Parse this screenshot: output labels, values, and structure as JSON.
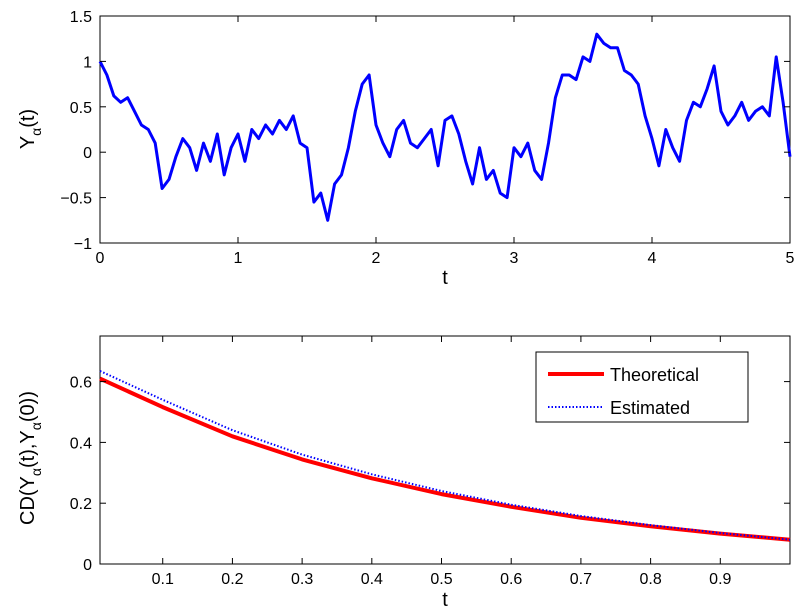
{
  "chart_data": [
    {
      "type": "line",
      "title": "",
      "xlabel": "t",
      "ylabel": "Y_α(t)",
      "ylabel_parts": [
        "Y",
        "α",
        "(t)"
      ],
      "xlim": [
        0,
        5
      ],
      "ylim": [
        -1,
        1.5
      ],
      "xticks": [
        "0",
        "1",
        "2",
        "3",
        "4",
        "5"
      ],
      "yticks": [
        "−1",
        "−0.5",
        "0",
        "0.5",
        "1",
        "1.5"
      ],
      "grid": false,
      "series": [
        {
          "color": "#0000ff",
          "x": [
            0.0,
            0.05,
            0.1,
            0.15,
            0.2,
            0.25,
            0.3,
            0.35,
            0.4,
            0.45,
            0.5,
            0.55,
            0.6,
            0.65,
            0.7,
            0.75,
            0.8,
            0.85,
            0.9,
            0.95,
            1.0,
            1.05,
            1.1,
            1.15,
            1.2,
            1.25,
            1.3,
            1.35,
            1.4,
            1.45,
            1.5,
            1.55,
            1.6,
            1.65,
            1.7,
            1.75,
            1.8,
            1.85,
            1.9,
            1.95,
            2.0,
            2.05,
            2.1,
            2.15,
            2.2,
            2.25,
            2.3,
            2.35,
            2.4,
            2.45,
            2.5,
            2.55,
            2.6,
            2.65,
            2.7,
            2.75,
            2.8,
            2.85,
            2.9,
            2.95,
            3.0,
            3.05,
            3.1,
            3.15,
            3.2,
            3.25,
            3.3,
            3.35,
            3.4,
            3.45,
            3.5,
            3.55,
            3.6,
            3.65,
            3.7,
            3.75,
            3.8,
            3.85,
            3.9,
            3.95,
            4.0,
            4.05,
            4.1,
            4.15,
            4.2,
            4.25,
            4.3,
            4.35,
            4.4,
            4.45,
            4.5,
            4.55,
            4.6,
            4.65,
            4.7,
            4.75,
            4.8,
            4.85,
            4.9,
            4.95,
            5.0
          ],
          "y": [
            1.0,
            0.85,
            0.62,
            0.55,
            0.6,
            0.45,
            0.3,
            0.25,
            0.1,
            -0.4,
            -0.3,
            -0.05,
            0.15,
            0.05,
            -0.2,
            0.1,
            -0.1,
            0.2,
            -0.25,
            0.05,
            0.2,
            -0.1,
            0.25,
            0.15,
            0.3,
            0.2,
            0.35,
            0.25,
            0.4,
            0.1,
            0.05,
            -0.55,
            -0.45,
            -0.75,
            -0.35,
            -0.25,
            0.05,
            0.45,
            0.75,
            0.85,
            0.3,
            0.1,
            -0.05,
            0.25,
            0.35,
            0.1,
            0.05,
            0.15,
            0.25,
            -0.15,
            0.35,
            0.4,
            0.2,
            -0.1,
            -0.35,
            0.05,
            -0.3,
            -0.2,
            -0.45,
            -0.5,
            0.05,
            -0.05,
            0.1,
            -0.2,
            -0.3,
            0.1,
            0.6,
            0.85,
            0.85,
            0.8,
            1.05,
            1.0,
            1.3,
            1.2,
            1.15,
            1.15,
            0.9,
            0.85,
            0.75,
            0.4,
            0.15,
            -0.15,
            0.25,
            0.05,
            -0.1,
            0.35,
            0.55,
            0.5,
            0.7,
            0.95,
            0.45,
            0.3,
            0.4,
            0.55,
            0.35,
            0.45,
            0.5,
            0.4,
            1.05,
            0.55,
            -0.05
          ]
        }
      ]
    },
    {
      "type": "line",
      "title": "",
      "xlabel": "t",
      "ylabel": "CD(Y_α(t),Y_α(0))",
      "ylabel_parts": [
        "CD(Y",
        "α",
        "(t),Y",
        "α",
        "(0))"
      ],
      "xlim": [
        0.01,
        1.0
      ],
      "ylim": [
        0,
        0.75
      ],
      "xticks": [
        "0.1",
        "0.2",
        "0.3",
        "0.4",
        "0.5",
        "0.6",
        "0.7",
        "0.8",
        "0.9"
      ],
      "yticks": [
        "0",
        "0.2",
        "0.4",
        "0.6"
      ],
      "grid": false,
      "legend_position": "top-right",
      "series": [
        {
          "name": "Theoretical",
          "color": "#ff0000",
          "x": [
            0.01,
            0.1,
            0.2,
            0.3,
            0.4,
            0.5,
            0.6,
            0.7,
            0.8,
            0.9,
            1.0
          ],
          "y": [
            0.61,
            0.516,
            0.42,
            0.344,
            0.282,
            0.23,
            0.188,
            0.152,
            0.124,
            0.1,
            0.08
          ]
        },
        {
          "name": "Estimated",
          "color": "#0000ff",
          "x": [
            0.01,
            0.1,
            0.2,
            0.3,
            0.4,
            0.5,
            0.6,
            0.7,
            0.8,
            0.9,
            1.0
          ],
          "y": [
            0.635,
            0.54,
            0.44,
            0.36,
            0.295,
            0.24,
            0.195,
            0.158,
            0.128,
            0.102,
            0.08
          ]
        }
      ]
    }
  ]
}
